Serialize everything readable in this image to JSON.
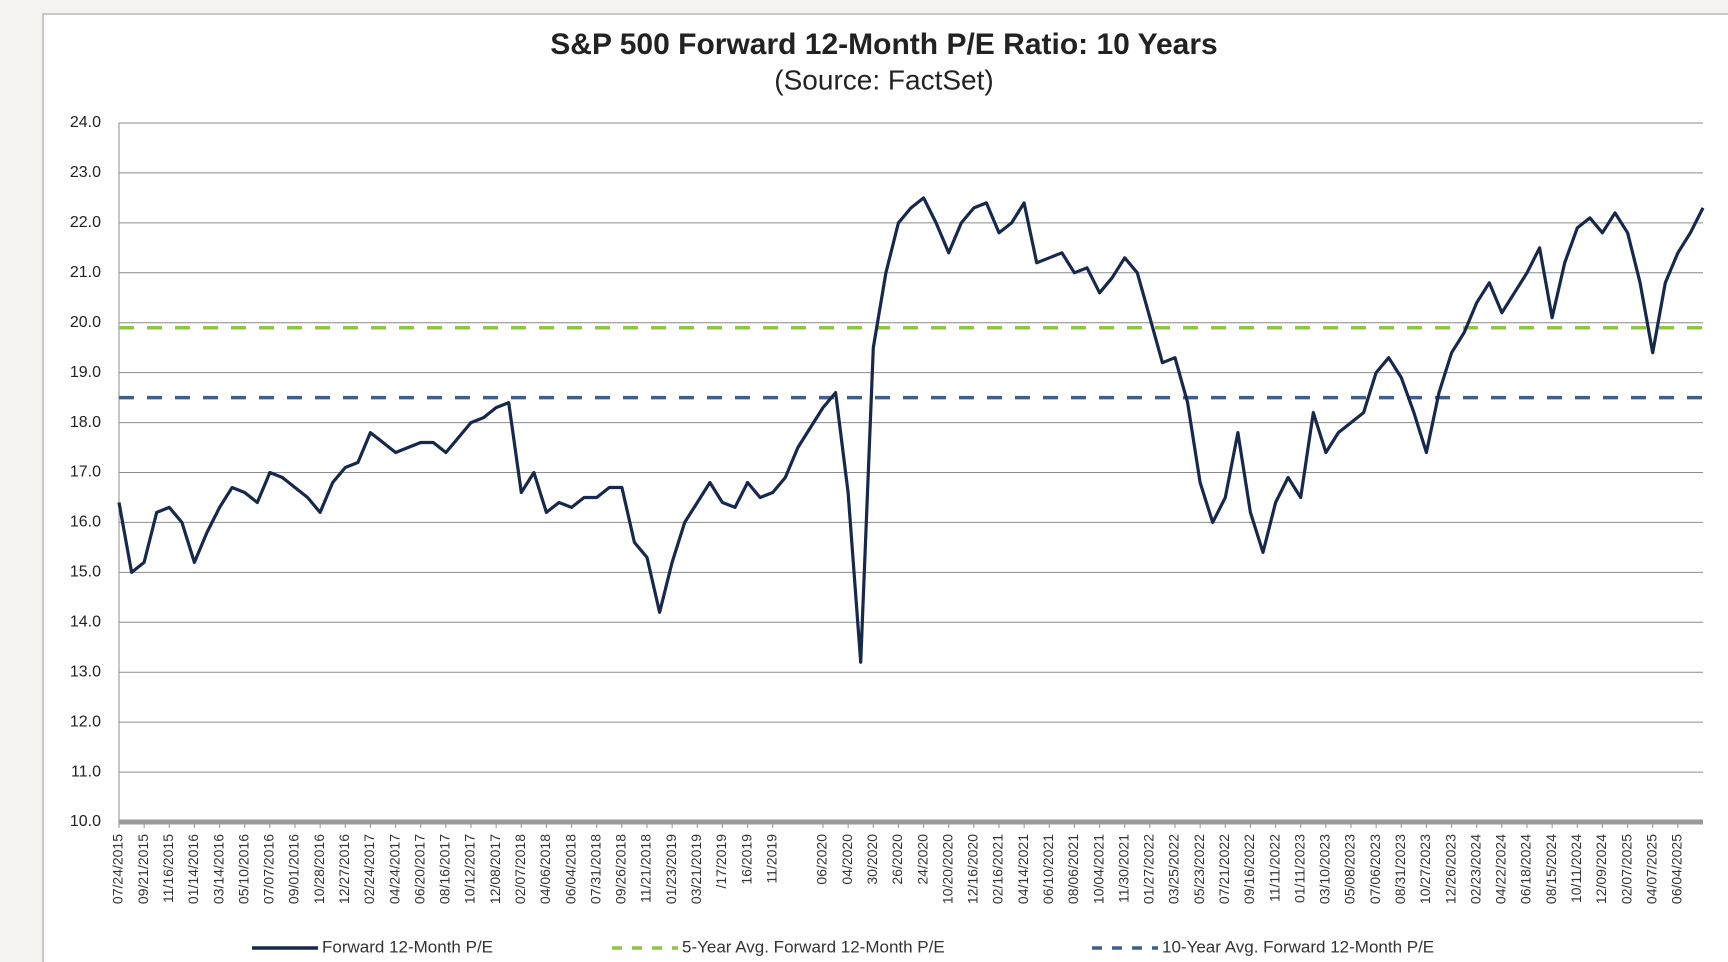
{
  "chart_data": {
    "type": "line",
    "title": "S&P 500 Forward 12-Month P/E Ratio: 10 Years",
    "subtitle": "(Source: FactSet)",
    "categories": [
      "07/24/2015",
      null,
      "09/21/2015",
      null,
      "11/16/2015",
      null,
      "01/14/2016",
      null,
      "03/14/2016",
      null,
      "05/10/2016",
      null,
      "07/07/2016",
      null,
      "09/01/2016",
      null,
      "10/28/2016",
      null,
      "12/27/2016",
      null,
      "02/24/2017",
      null,
      "04/24/2017",
      null,
      "06/20/2017",
      null,
      "08/16/2017",
      null,
      "10/12/2017",
      null,
      "12/08/2017",
      null,
      "02/07/2018",
      null,
      "04/06/2018",
      null,
      "06/04/2018",
      null,
      "07/31/2018",
      null,
      "09/26/2018",
      null,
      "11/21/2018",
      null,
      "01/23/2019",
      null,
      "03/21/2019",
      null,
      "/17/2019",
      null,
      "16/2019",
      null,
      "11/2019",
      null,
      null,
      null,
      "06/2020",
      null,
      "04/2020",
      null,
      "30/2020",
      null,
      "26/2020",
      null,
      "24/2020",
      null,
      "10/20/2020",
      null,
      "12/16/2020",
      null,
      "02/16/2021",
      null,
      "04/14/2021",
      null,
      "06/10/2021",
      null,
      "08/06/2021",
      null,
      "10/04/2021",
      null,
      "11/30/2021",
      null,
      "01/27/2022",
      null,
      "03/25/2022",
      null,
      "05/23/2022",
      null,
      "07/21/2022",
      null,
      "09/16/2022",
      null,
      "11/11/2022",
      null,
      "01/11/2023",
      null,
      "03/10/2023",
      null,
      "05/08/2023",
      null,
      "07/06/2023",
      null,
      "08/31/2023",
      null,
      "10/27/2023",
      null,
      "12/26/2023",
      null,
      "02/23/2024",
      null,
      "04/22/2024",
      null,
      "06/18/2024",
      null,
      "08/15/2024",
      null,
      "10/11/2024",
      null,
      "12/09/2024",
      null,
      "02/07/2025",
      null,
      "04/07/2025",
      null,
      "06/04/2025",
      null,
      null
    ],
    "series": [
      {
        "name": "Forward 12-Month P/E",
        "color": "#17284d",
        "values": [
          16.4,
          15.0,
          15.2,
          16.2,
          16.3,
          16.0,
          15.2,
          15.8,
          16.3,
          16.7,
          16.6,
          16.4,
          17.0,
          16.9,
          16.7,
          16.5,
          16.2,
          16.8,
          17.1,
          17.2,
          17.8,
          17.6,
          17.4,
          17.5,
          17.6,
          17.6,
          17.4,
          17.7,
          18.0,
          18.1,
          18.3,
          18.4,
          16.6,
          17.0,
          16.2,
          16.4,
          16.3,
          16.5,
          16.5,
          16.7,
          16.7,
          15.6,
          15.3,
          14.2,
          15.2,
          16.0,
          16.4,
          16.8,
          16.4,
          16.3,
          16.8,
          16.5,
          16.6,
          16.9,
          17.5,
          17.9,
          18.3,
          18.6,
          16.6,
          13.2,
          19.5,
          21.0,
          22.0,
          22.3,
          22.5,
          22.0,
          21.4,
          22.0,
          22.3,
          22.4,
          21.8,
          22.0,
          22.4,
          21.2,
          21.3,
          21.4,
          21.0,
          21.1,
          20.6,
          20.9,
          21.3,
          21.0,
          20.1,
          19.2,
          19.3,
          18.4,
          16.8,
          16.0,
          16.5,
          17.8,
          16.2,
          15.4,
          16.4,
          16.9,
          16.5,
          18.2,
          17.4,
          17.8,
          18.0,
          18.2,
          19.0,
          19.3,
          18.9,
          18.2,
          17.4,
          18.6,
          19.4,
          19.8,
          20.4,
          20.8,
          20.2,
          20.6,
          21.0,
          21.5,
          20.1,
          21.2,
          21.9,
          22.1,
          21.8,
          22.2,
          21.8,
          20.8,
          19.4,
          20.8,
          21.4,
          21.8,
          22.3
        ]
      }
    ],
    "reference_lines": [
      {
        "name": "5-Year Avg. Forward 12-Month P/E",
        "color": "#8dc63f",
        "value": 19.9
      },
      {
        "name": "10-Year Avg. Forward 12-Month P/E",
        "color": "#3f5f8c",
        "value": 18.5
      }
    ],
    "ylim": [
      10,
      24
    ],
    "yticks": [
      {
        "value": 10,
        "label": "10.0"
      },
      {
        "value": 11,
        "label": "11.0"
      },
      {
        "value": 12,
        "label": "12.0"
      },
      {
        "value": 13,
        "label": "13.0"
      },
      {
        "value": 14,
        "label": "14.0"
      },
      {
        "value": 15,
        "label": "15.0"
      },
      {
        "value": 16,
        "label": "16.0"
      },
      {
        "value": 17,
        "label": "17.0"
      },
      {
        "value": 18,
        "label": "18.0"
      },
      {
        "value": 19,
        "label": "19.0"
      },
      {
        "value": 20,
        "label": "20.0"
      },
      {
        "value": 21,
        "label": "21.0"
      },
      {
        "value": 22,
        "label": "22.0"
      },
      {
        "value": 23,
        "label": "23.0"
      },
      {
        "value": 24,
        "label": "24.0"
      }
    ],
    "grid": true,
    "legend": "bottom"
  }
}
